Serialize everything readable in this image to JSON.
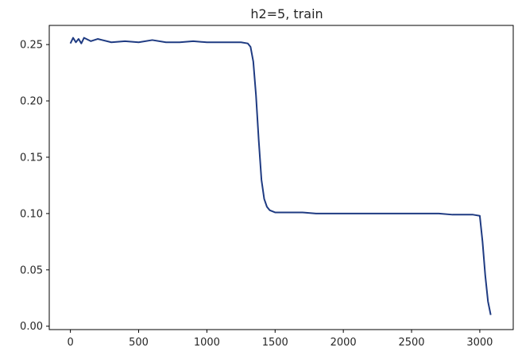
{
  "chart_data": {
    "type": "line",
    "title": "h2=5, train",
    "xlabel": "",
    "ylabel": "",
    "xlim": [
      -155,
      3245
    ],
    "ylim": [
      -0.003,
      0.267
    ],
    "xticks": [
      0,
      500,
      1000,
      1500,
      2000,
      2500,
      3000
    ],
    "xtick_labels": [
      "0",
      "500",
      "1000",
      "1500",
      "2000",
      "2500",
      "3000"
    ],
    "yticks": [
      0.0,
      0.05,
      0.1,
      0.15,
      0.2,
      0.25
    ],
    "ytick_labels": [
      "0.00",
      "0.05",
      "0.10",
      "0.15",
      "0.20",
      "0.25"
    ],
    "grid": false,
    "legend": "none",
    "series": [
      {
        "color": "#1f3b82",
        "x": [
          0,
          20,
          40,
          60,
          80,
          100,
          150,
          200,
          300,
          400,
          500,
          600,
          700,
          800,
          900,
          1000,
          1100,
          1200,
          1250,
          1300,
          1320,
          1340,
          1360,
          1380,
          1400,
          1420,
          1440,
          1460,
          1480,
          1500,
          1550,
          1600,
          1700,
          1800,
          1900,
          2000,
          2100,
          2200,
          2300,
          2400,
          2500,
          2600,
          2700,
          2800,
          2900,
          2950,
          3000,
          3020,
          3040,
          3060,
          3080
        ],
        "y": [
          0.251,
          0.256,
          0.252,
          0.255,
          0.251,
          0.256,
          0.253,
          0.255,
          0.252,
          0.253,
          0.252,
          0.254,
          0.252,
          0.252,
          0.253,
          0.252,
          0.252,
          0.252,
          0.252,
          0.251,
          0.248,
          0.235,
          0.205,
          0.165,
          0.13,
          0.113,
          0.106,
          0.103,
          0.102,
          0.101,
          0.101,
          0.101,
          0.101,
          0.1,
          0.1,
          0.1,
          0.1,
          0.1,
          0.1,
          0.1,
          0.1,
          0.1,
          0.1,
          0.099,
          0.099,
          0.099,
          0.098,
          0.075,
          0.045,
          0.022,
          0.01
        ]
      }
    ]
  }
}
